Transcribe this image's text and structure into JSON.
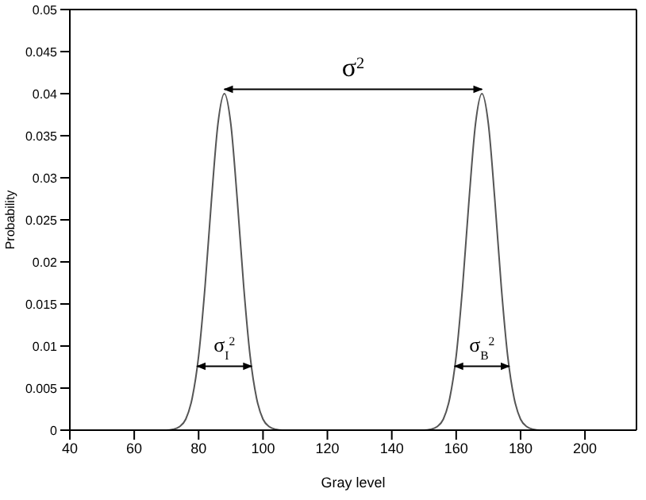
{
  "chart_data": {
    "type": "line",
    "xlabel": "Gray level",
    "ylabel": "Probability",
    "x": [
      40,
      70,
      72,
      74,
      76,
      78,
      80,
      82,
      84,
      86,
      88,
      90,
      92,
      94,
      96,
      98,
      100,
      102,
      104,
      106,
      150,
      152,
      154,
      156,
      158,
      160,
      162,
      164,
      166,
      168,
      170,
      172,
      174,
      176,
      178,
      180,
      182,
      184,
      186,
      216
    ],
    "series": [
      {
        "color": "#555555",
        "values": [
          0,
          0,
          0.0001,
          0.0004,
          0.0013,
          0.0038,
          0.0088,
          0.0171,
          0.0274,
          0.0364,
          0.04,
          0.0364,
          0.0274,
          0.0171,
          0.0088,
          0.0038,
          0.0013,
          0.0004,
          0.0001,
          0,
          0,
          0.0001,
          0.0004,
          0.0013,
          0.0038,
          0.0088,
          0.0171,
          0.0274,
          0.0364,
          0.04,
          0.0364,
          0.0274,
          0.0171,
          0.0088,
          0.0038,
          0.0013,
          0.0004,
          0.0001,
          0,
          0
        ]
      }
    ],
    "xlim": [
      40,
      216
    ],
    "xticks": [
      40,
      60,
      80,
      100,
      120,
      140,
      160,
      180,
      200
    ],
    "ylim": [
      0,
      0.05
    ],
    "yticks": [
      0,
      0.005,
      0.01,
      0.015,
      0.02,
      0.025,
      0.03,
      0.035,
      0.04,
      0.045,
      0.05
    ],
    "grid": false,
    "legend": false,
    "marker": "none",
    "line_style": "solid",
    "annotations": [
      "σ$^{2}$",
      "σ$_{I}$$^{2}$",
      "σ$_{B}$$^{2}$"
    ]
  }
}
